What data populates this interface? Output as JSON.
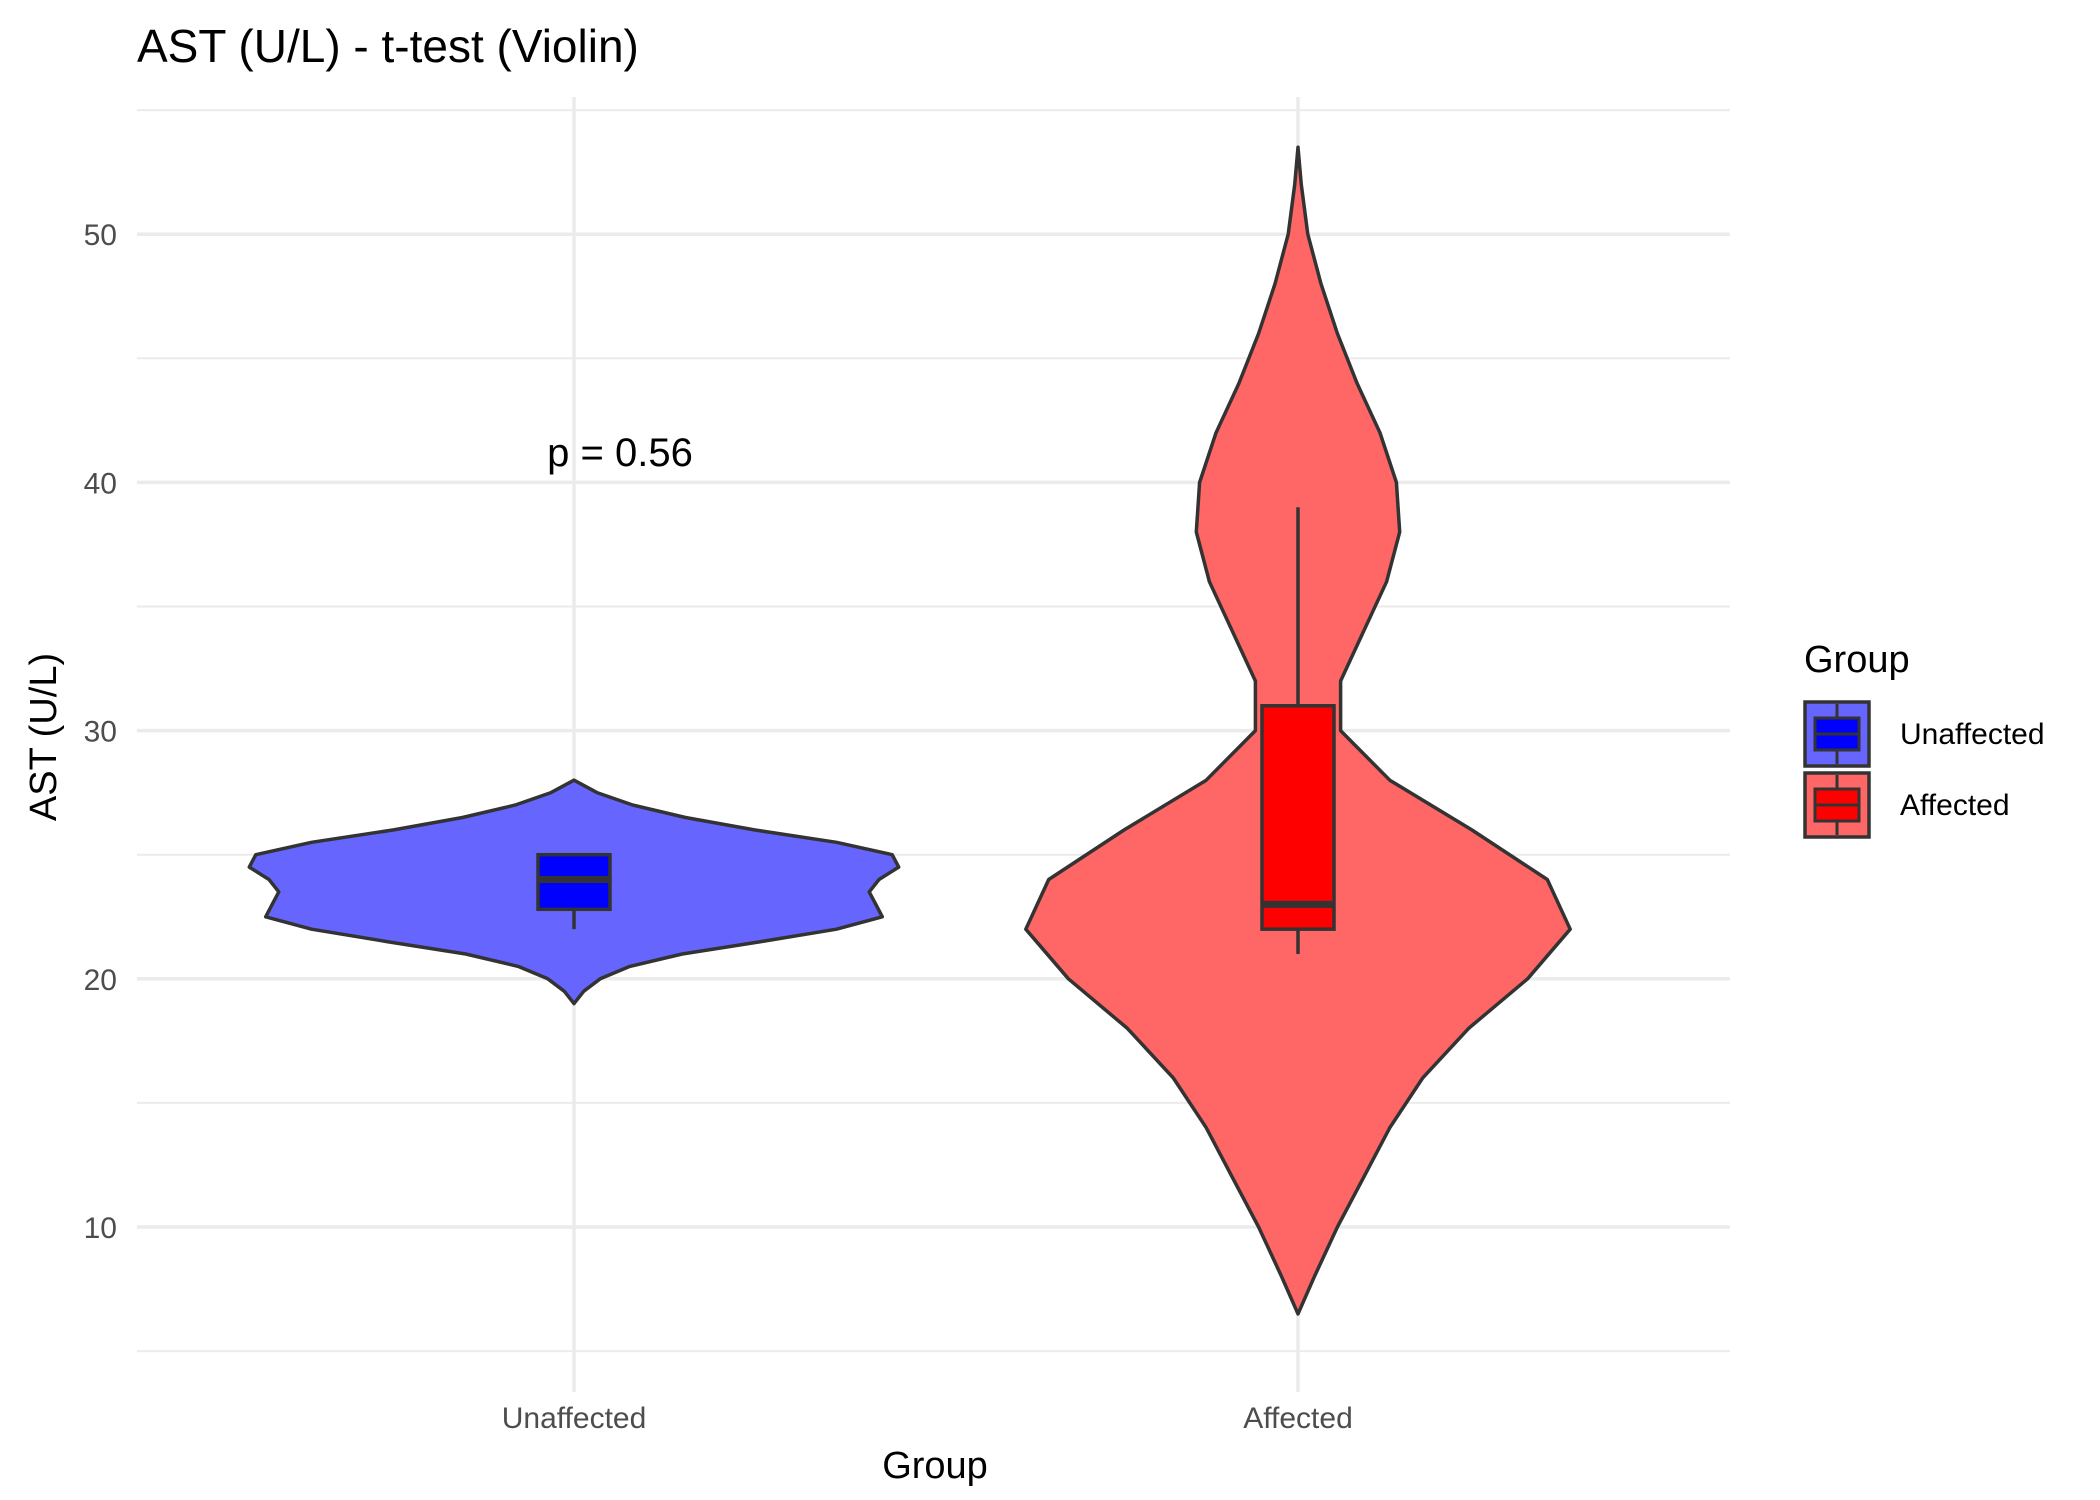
{
  "chart_data": {
    "type": "violin",
    "title": "AST (U/L) - t-test (Violin)",
    "xlabel": "Group",
    "ylabel": "AST (U/L)",
    "ylim": [
      5,
      55
    ],
    "y_ticks": [
      10,
      20,
      30,
      40,
      50
    ],
    "grid": true,
    "categories": [
      "Unaffected",
      "Affected"
    ],
    "annotation": "p = 0.56",
    "legend": {
      "title": "Group",
      "position": "right",
      "items": [
        "Unaffected",
        "Affected"
      ]
    },
    "series": [
      {
        "name": "Unaffected",
        "color": "#0000ff",
        "violin_color": "#6666ff",
        "box": {
          "min": 22.0,
          "q1": 22.8,
          "median": 24.0,
          "q3": 25.0,
          "max": 25.0
        },
        "density": [
          [
            19.0,
            0.0
          ],
          [
            19.5,
            0.03
          ],
          [
            20.0,
            0.08
          ],
          [
            20.5,
            0.17
          ],
          [
            21.0,
            0.33
          ],
          [
            21.5,
            0.57
          ],
          [
            22.0,
            0.8
          ],
          [
            22.5,
            0.94
          ],
          [
            23.0,
            0.92
          ],
          [
            23.5,
            0.9
          ],
          [
            24.0,
            0.93
          ],
          [
            24.5,
            0.99
          ],
          [
            25.0,
            0.97
          ],
          [
            25.5,
            0.8
          ],
          [
            26.0,
            0.55
          ],
          [
            26.5,
            0.34
          ],
          [
            27.0,
            0.18
          ],
          [
            27.5,
            0.07
          ],
          [
            28.0,
            0.0
          ]
        ]
      },
      {
        "name": "Affected",
        "color": "#ff0000",
        "violin_color": "#ff6666",
        "box": {
          "min": 21.0,
          "q1": 22.0,
          "median": 23.0,
          "q3": 31.0,
          "max": 39.0
        },
        "density": [
          [
            6.5,
            0.0
          ],
          [
            8,
            0.05
          ],
          [
            10,
            0.12
          ],
          [
            12,
            0.2
          ],
          [
            14,
            0.28
          ],
          [
            16,
            0.38
          ],
          [
            18,
            0.52
          ],
          [
            20,
            0.7
          ],
          [
            22,
            0.83
          ],
          [
            24,
            0.76
          ],
          [
            26,
            0.53
          ],
          [
            28,
            0.28
          ],
          [
            30,
            0.13
          ],
          [
            32,
            0.13
          ],
          [
            34,
            0.2
          ],
          [
            36,
            0.27
          ],
          [
            38,
            0.31
          ],
          [
            40,
            0.3
          ],
          [
            42,
            0.25
          ],
          [
            44,
            0.18
          ],
          [
            46,
            0.12
          ],
          [
            48,
            0.07
          ],
          [
            50,
            0.03
          ],
          [
            52,
            0.01
          ],
          [
            53.5,
            0.0
          ]
        ]
      }
    ]
  }
}
